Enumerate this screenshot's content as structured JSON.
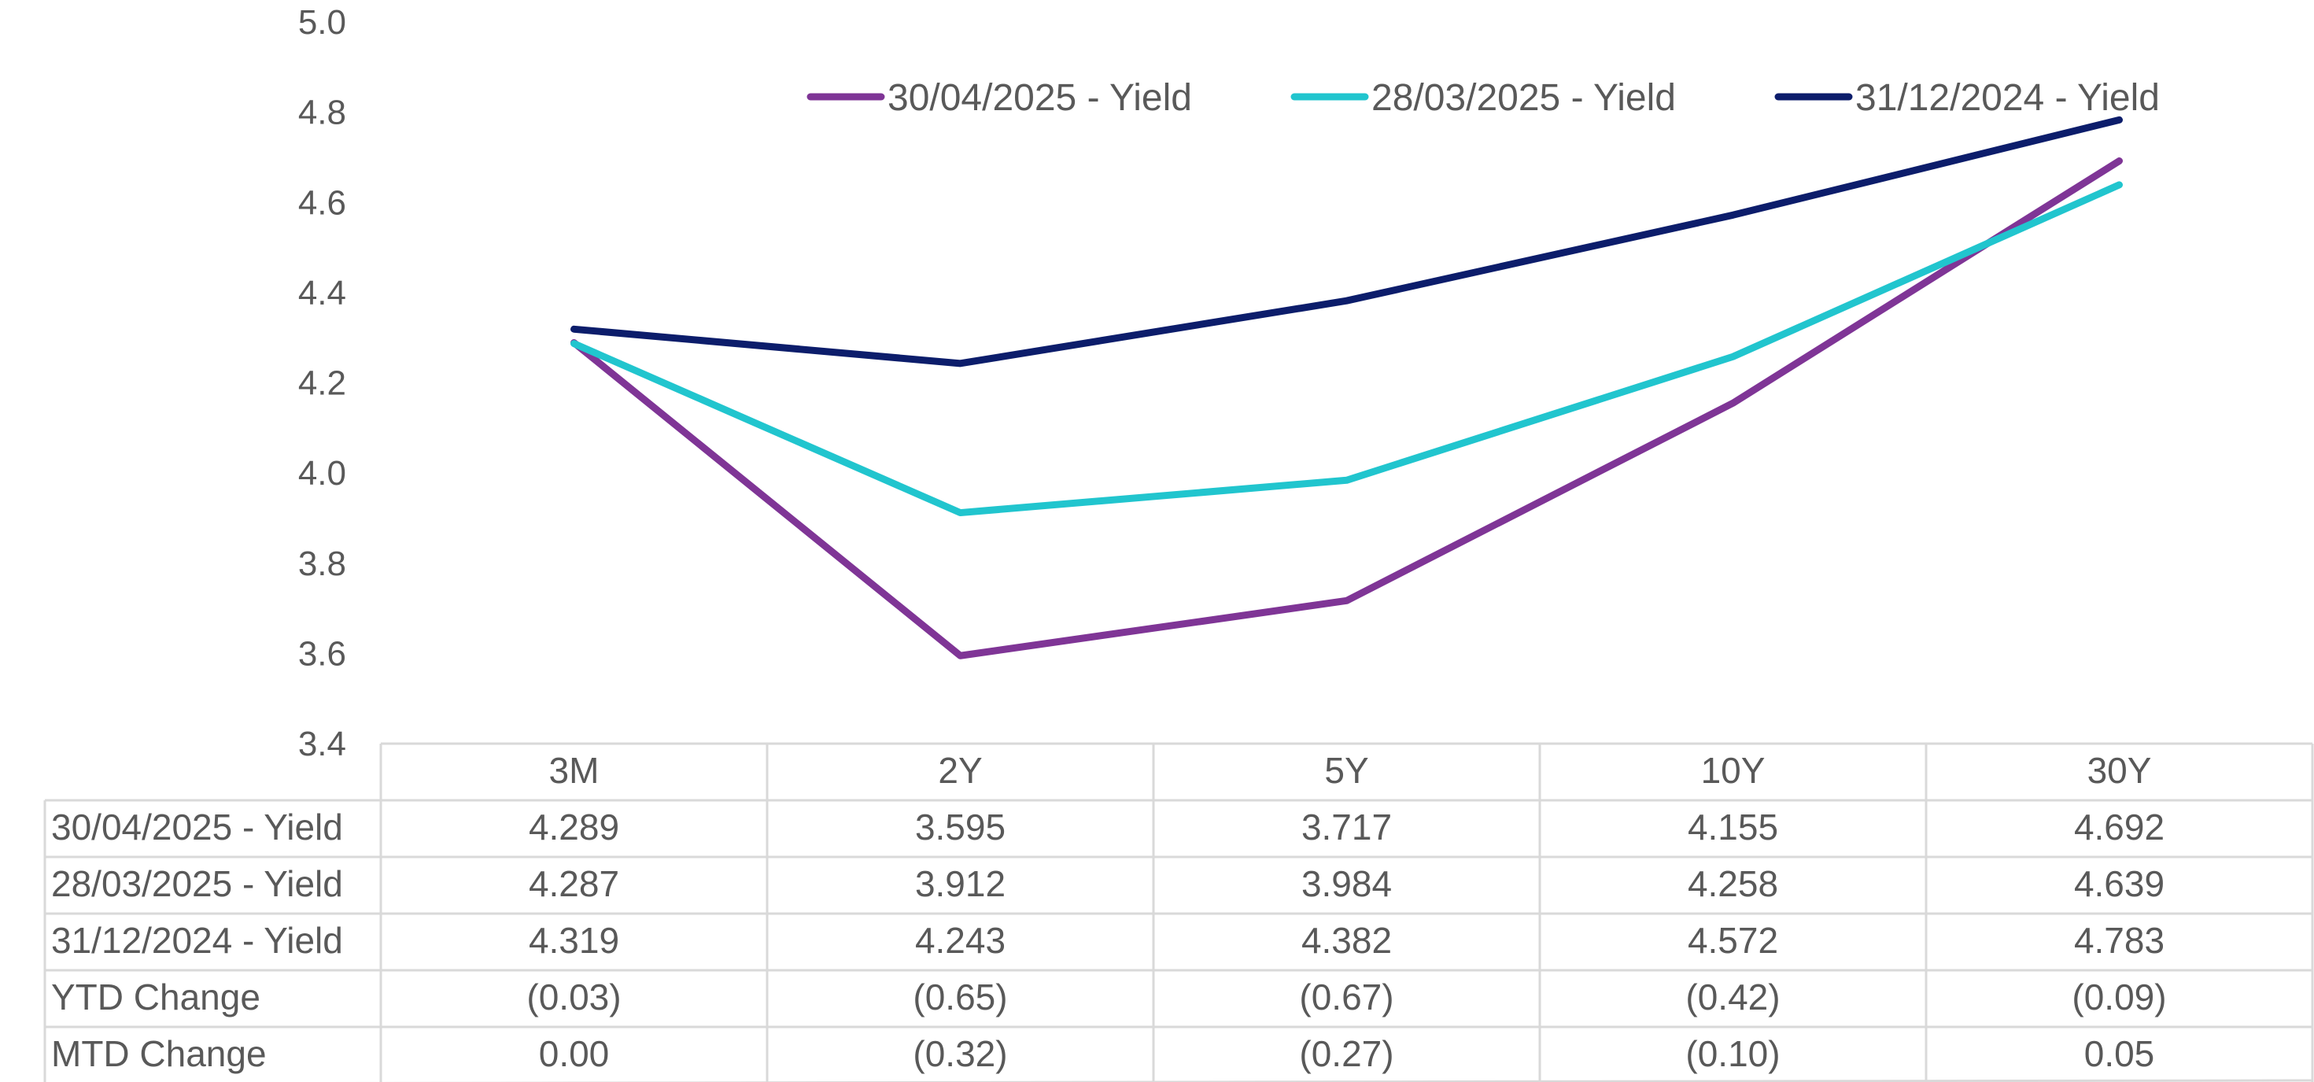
{
  "chart_data": {
    "type": "line",
    "categories": [
      "3M",
      "2Y",
      "5Y",
      "10Y",
      "30Y"
    ],
    "ylim": [
      3.4,
      5.0
    ],
    "yticks": [
      "3.4",
      "3.6",
      "3.8",
      "4.0",
      "4.2",
      "4.4",
      "4.6",
      "4.8",
      "5.0"
    ],
    "grid": false,
    "legend_position": "top",
    "series": [
      {
        "name": "30/04/2025 - Yield",
        "color": "#7F3596",
        "values": [
          4.289,
          3.595,
          3.717,
          4.155,
          4.692
        ]
      },
      {
        "name": "28/03/2025 - Yield",
        "color": "#21C5CE",
        "values": [
          4.287,
          3.912,
          3.984,
          4.258,
          4.639
        ]
      },
      {
        "name": "31/12/2024 - Yield",
        "color": "#0C1D6B",
        "values": [
          4.319,
          4.243,
          4.382,
          4.572,
          4.783
        ]
      }
    ],
    "table": {
      "rows": [
        {
          "label": "30/04/2025 - Yield",
          "cells": [
            "4.289",
            "3.595",
            "3.717",
            "4.155",
            "4.692"
          ]
        },
        {
          "label": "28/03/2025 - Yield",
          "cells": [
            "4.287",
            "3.912",
            "3.984",
            "4.258",
            "4.639"
          ]
        },
        {
          "label": "31/12/2024 - Yield",
          "cells": [
            "4.319",
            "4.243",
            "4.382",
            "4.572",
            "4.783"
          ]
        },
        {
          "label": "YTD Change",
          "cells": [
            "(0.03)",
            "(0.65)",
            "(0.67)",
            "(0.42)",
            "(0.09)"
          ]
        },
        {
          "label": "MTD Change",
          "cells": [
            "0.00",
            "(0.32)",
            "(0.27)",
            "(0.10)",
            "0.05"
          ]
        }
      ]
    }
  }
}
